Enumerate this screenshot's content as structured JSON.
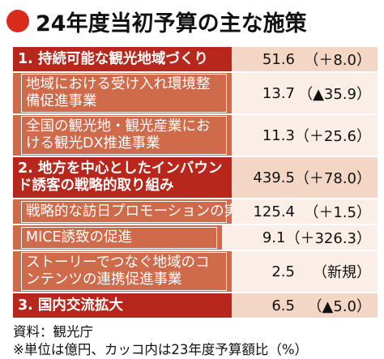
{
  "title": "24年度当初予算の主な施策",
  "rows": [
    {
      "label": "1. 持続可能な観光地域づくり",
      "value": "51.6",
      "change": "（＋8.0）",
      "kind": "cat"
    },
    {
      "label": "地域における受け入れ環境整備促進事業",
      "value": "13.7",
      "change": "（▲35.9）",
      "kind": "sub"
    },
    {
      "label": "全国の観光地・観光産業における観光DX推進事業",
      "value": "11.3",
      "change": "（＋25.6）",
      "kind": "sub"
    },
    {
      "label": "2. 地方を中心としたインバウンド誘客の戦略的取り組み",
      "value": "439.5",
      "change": "（＋78.0）",
      "kind": "cat"
    },
    {
      "label": "戦略的な訪日プロモーションの実施",
      "value": "125.4",
      "change": "（＋1.5）",
      "kind": "sub"
    },
    {
      "label": "MICE誘致の促進",
      "value": "9.1",
      "change": "（＋326.3）",
      "kind": "sub"
    },
    {
      "label": "ストーリーでつなぐ地域のコンテンツの連携促進事業",
      "value": "2.5",
      "change": "（新規）",
      "kind": "sub"
    },
    {
      "label": "3. 国内交流拡大",
      "value": "6.5",
      "change": "（▲5.0）",
      "kind": "cat"
    }
  ],
  "footer": {
    "source": "資料：観光庁",
    "note": "※単位は億円、カッコ内は23年度予算額比（%）"
  },
  "colors": {
    "accent": "#d92b1c",
    "category": "#b8271c",
    "subitem": "#cf6a4b"
  }
}
